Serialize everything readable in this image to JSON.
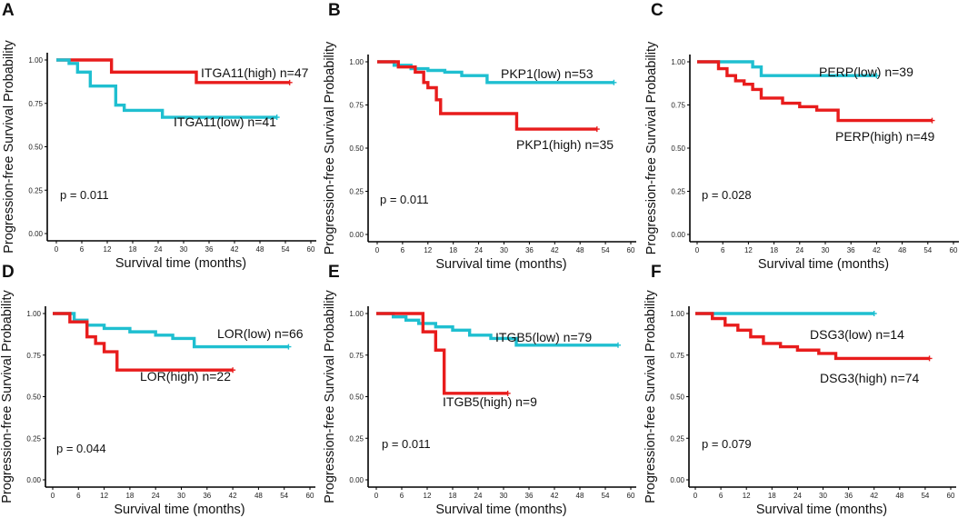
{
  "colors": {
    "high": "#e81c1c",
    "low": "#1fbfd0",
    "axis": "#000000",
    "text": "#111111"
  },
  "chart_data": [
    {
      "type": "line",
      "subtype": "kaplan-meier",
      "panel": "A",
      "xlabel": "Survival time (months)",
      "ylabel": "Progression-free Survival Probability",
      "xlim": [
        0,
        60
      ],
      "ylim": [
        0,
        1
      ],
      "xticks": [
        "0",
        "6",
        "12",
        "18",
        "24",
        "30",
        "36",
        "42",
        "48",
        "54",
        "60"
      ],
      "yticks": [
        "0.00",
        "0.25",
        "0.50",
        "0.75",
        "1.00"
      ],
      "p_value": "p = 0.011",
      "series": [
        {
          "group": "high",
          "label": "ITGA11(high) n=47",
          "x": [
            0,
            12,
            13,
            33,
            55
          ],
          "y": [
            1.0,
            1.0,
            0.93,
            0.87,
            0.87
          ]
        },
        {
          "group": "low",
          "label": "ITGA11(low) n=41",
          "x": [
            0,
            3,
            5,
            8,
            14,
            16,
            25,
            52
          ],
          "y": [
            1.0,
            0.98,
            0.93,
            0.85,
            0.74,
            0.71,
            0.67,
            0.67
          ]
        }
      ]
    },
    {
      "type": "line",
      "subtype": "kaplan-meier",
      "panel": "B",
      "xlabel": "Survival time (months)",
      "ylabel": "Progression-free Survival Probability",
      "xlim": [
        0,
        60
      ],
      "ylim": [
        0,
        1
      ],
      "xticks": [
        "0",
        "6",
        "12",
        "18",
        "24",
        "30",
        "36",
        "42",
        "48",
        "54",
        "60"
      ],
      "yticks": [
        "0.00",
        "0.25",
        "0.50",
        "0.75",
        "1.00"
      ],
      "p_value": "p = 0.011",
      "series": [
        {
          "group": "low",
          "label": "PKP1(low) n=53",
          "x": [
            0,
            4,
            8,
            12,
            16,
            20,
            26,
            56
          ],
          "y": [
            1.0,
            0.98,
            0.96,
            0.95,
            0.94,
            0.92,
            0.88,
            0.88
          ]
        },
        {
          "group": "high",
          "label": "PKP1(high) n=35",
          "x": [
            0,
            5,
            9,
            11,
            12,
            14,
            15,
            33,
            52
          ],
          "y": [
            1.0,
            0.97,
            0.94,
            0.88,
            0.85,
            0.78,
            0.7,
            0.61,
            0.61
          ]
        }
      ]
    },
    {
      "type": "line",
      "subtype": "kaplan-meier",
      "panel": "C",
      "xlabel": "Survival time (months)",
      "ylabel": "Progression-free Survival Probability",
      "xlim": [
        0,
        60
      ],
      "ylim": [
        0,
        1
      ],
      "xticks": [
        "0",
        "6",
        "12",
        "18",
        "24",
        "30",
        "36",
        "42",
        "48",
        "54",
        "60"
      ],
      "yticks": [
        "0.00",
        "0.25",
        "0.50",
        "0.75",
        "1.00"
      ],
      "p_value": "p = 0.028",
      "series": [
        {
          "group": "low",
          "label": "PERP(low) n=39",
          "x": [
            0,
            13,
            15,
            42
          ],
          "y": [
            1.0,
            0.97,
            0.92,
            0.92
          ]
        },
        {
          "group": "high",
          "label": "PERP(high) n=49",
          "x": [
            0,
            5,
            7,
            9,
            11,
            13,
            15,
            20,
            24,
            28,
            33,
            55
          ],
          "y": [
            1.0,
            0.96,
            0.92,
            0.89,
            0.87,
            0.84,
            0.79,
            0.76,
            0.74,
            0.72,
            0.66,
            0.66
          ]
        }
      ]
    },
    {
      "type": "line",
      "subtype": "kaplan-meier",
      "panel": "D",
      "xlabel": "Survival time (months)",
      "ylabel": "Progression-free Survival Probability",
      "xlim": [
        0,
        60
      ],
      "ylim": [
        0,
        1
      ],
      "xticks": [
        "0",
        "6",
        "12",
        "18",
        "24",
        "30",
        "36",
        "42",
        "48",
        "54",
        "60"
      ],
      "yticks": [
        "0.00",
        "0.25",
        "0.50",
        "0.75",
        "1.00"
      ],
      "p_value": "p = 0.044",
      "series": [
        {
          "group": "low",
          "label": "LOR(low) n=66",
          "x": [
            0,
            5,
            8,
            12,
            18,
            24,
            28,
            33,
            55
          ],
          "y": [
            1.0,
            0.96,
            0.93,
            0.91,
            0.89,
            0.87,
            0.85,
            0.8,
            0.8
          ]
        },
        {
          "group": "high",
          "label": "LOR(high) n=22",
          "x": [
            0,
            4,
            8,
            10,
            12,
            15,
            42
          ],
          "y": [
            1.0,
            0.95,
            0.86,
            0.82,
            0.77,
            0.66,
            0.66
          ]
        }
      ]
    },
    {
      "type": "line",
      "subtype": "kaplan-meier",
      "panel": "E",
      "xlabel": "Survival time (months)",
      "ylabel": "Progression-free Survival Probability",
      "xlim": [
        0,
        60
      ],
      "ylim": [
        0,
        1
      ],
      "xticks": [
        "0",
        "6",
        "12",
        "18",
        "24",
        "30",
        "36",
        "42",
        "48",
        "54",
        "60"
      ],
      "yticks": [
        "0.00",
        "0.25",
        "0.50",
        "0.75",
        "1.00"
      ],
      "p_value": "p = 0.011",
      "series": [
        {
          "group": "low",
          "label": "ITGB5(low) n=79",
          "x": [
            0,
            4,
            7,
            10,
            14,
            18,
            22,
            27,
            33,
            57
          ],
          "y": [
            1.0,
            0.98,
            0.96,
            0.94,
            0.92,
            0.9,
            0.87,
            0.85,
            0.81,
            0.81
          ]
        },
        {
          "group": "high",
          "label": "ITGB5(high) n=9",
          "x": [
            0,
            8,
            11,
            14,
            16,
            31
          ],
          "y": [
            1.0,
            1.0,
            0.89,
            0.78,
            0.52,
            0.52
          ]
        }
      ]
    },
    {
      "type": "line",
      "subtype": "kaplan-meier",
      "panel": "F",
      "xlabel": "Survival time (months)",
      "ylabel": "Progression-free Survival Probability",
      "xlim": [
        0,
        60
      ],
      "ylim": [
        0,
        1
      ],
      "xticks": [
        "0",
        "6",
        "12",
        "18",
        "24",
        "30",
        "36",
        "42",
        "48",
        "54",
        "60"
      ],
      "yticks": [
        "0.00",
        "0.25",
        "0.50",
        "0.75",
        "1.00"
      ],
      "p_value": "p = 0.079",
      "series": [
        {
          "group": "low",
          "label": "DSG3(low) n=14",
          "x": [
            0,
            42
          ],
          "y": [
            1.0,
            1.0
          ]
        },
        {
          "group": "high",
          "label": "DSG3(high) n=74",
          "x": [
            0,
            4,
            7,
            10,
            13,
            16,
            20,
            24,
            29,
            33,
            55
          ],
          "y": [
            1.0,
            0.97,
            0.93,
            0.9,
            0.86,
            0.82,
            0.8,
            0.78,
            0.76,
            0.73,
            0.73
          ]
        }
      ]
    }
  ]
}
